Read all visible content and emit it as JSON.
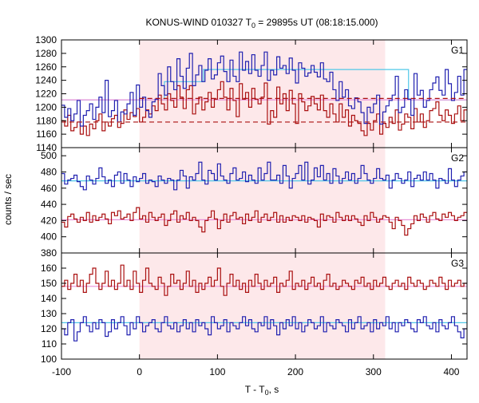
{
  "chart_data": {
    "type": "line",
    "title_main": "KONUS-WIND 010327 T",
    "title_sub": "0",
    "title_rest": " = 29895s UT (08:18:15.000)",
    "xlabel_main": "T - T",
    "xlabel_sub": "0",
    "xlabel_rest": ", s",
    "ylabel": "counts / sec",
    "xlim": [
      -100,
      420
    ],
    "x_ticks": [
      -100,
      0,
      100,
      200,
      300,
      400
    ],
    "highlight_interval": [
      0,
      315
    ],
    "colors": {
      "blue": "#2020b0",
      "red": "#aa1010",
      "cyan": "#50c8e8",
      "pink": "#e890d8",
      "highlight": "#fde8ea"
    },
    "panels": [
      {
        "label": "G1",
        "ylim": [
          1140,
          1300
        ],
        "y_ticks": [
          1140,
          1160,
          1180,
          1200,
          1220,
          1240,
          1260,
          1280,
          1300
        ],
        "bin_width": 4,
        "blue": [
          1203,
          1185,
          1198,
          1180,
          1190,
          1210,
          1172,
          1188,
          1195,
          1205,
          1182,
          1200,
          1215,
          1192,
          1240,
          1186,
          1195,
          1210,
          1178,
          1193,
          1190,
          1205,
          1222,
          1188,
          1233,
          1200,
          1215,
          1195,
          1185,
          1208,
          1212,
          1250,
          1232,
          1218,
          1260,
          1238,
          1226,
          1272,
          1246,
          1228,
          1258,
          1280,
          1232,
          1248,
          1262,
          1238,
          1255,
          1272,
          1242,
          1248,
          1266,
          1276,
          1253,
          1238,
          1270,
          1246,
          1238,
          1282,
          1255,
          1268,
          1250,
          1278,
          1255,
          1246,
          1262,
          1282,
          1240,
          1255,
          1248,
          1275,
          1258,
          1262,
          1250,
          1273,
          1255,
          1236,
          1266,
          1258,
          1246,
          1251,
          1262,
          1252,
          1245,
          1266,
          1242,
          1238,
          1252,
          1226,
          1210,
          1238,
          1215,
          1226,
          1202,
          1198,
          1214,
          1208,
          1192,
          1176,
          1200,
          1192,
          1205,
          1218,
          1175,
          1193,
          1202,
          1210,
          1218,
          1246,
          1192,
          1200,
          1226,
          1212,
          1188,
          1250,
          1218,
          1225,
          1200,
          1210,
          1226,
          1236,
          1245,
          1225,
          1218,
          1256,
          1235,
          1210,
          1222,
          1246,
          1218,
          1256
        ],
        "red": [
          1180,
          1172,
          1188,
          1165,
          1170,
          1178,
          1160,
          1172,
          1158,
          1175,
          1168,
          1180,
          1190,
          1165,
          1178,
          1172,
          1183,
          1188,
          1170,
          1176,
          1196,
          1182,
          1192,
          1186,
          1198,
          1178,
          1185,
          1196,
          1190,
          1202,
          1195,
          1218,
          1205,
          1196,
          1220,
          1210,
          1200,
          1232,
          1215,
          1198,
          1226,
          1232,
          1190,
          1205,
          1215,
          1196,
          1208,
          1222,
          1200,
          1212,
          1226,
          1238,
          1215,
          1196,
          1228,
          1210,
          1186,
          1235,
          1212,
          1222,
          1200,
          1228,
          1212,
          1205,
          1215,
          1236,
          1175,
          1195,
          1185,
          1230,
          1205,
          1220,
          1195,
          1225,
          1205,
          1176,
          1220,
          1208,
          1195,
          1202,
          1216,
          1205,
          1196,
          1218,
          1195,
          1185,
          1205,
          1190,
          1178,
          1205,
          1185,
          1196,
          1172,
          1188,
          1180,
          1176,
          1165,
          1158,
          1176,
          1166,
          1180,
          1190,
          1160,
          1176,
          1170,
          1185,
          1176,
          1196,
          1166,
          1175,
          1190,
          1185,
          1168,
          1198,
          1178,
          1190,
          1170,
          1180,
          1195,
          1198,
          1208,
          1188,
          1180,
          1196,
          1188,
          1176,
          1190,
          1202,
          1180,
          1196
        ],
        "cyan_steps": [
          {
            "x0": -100,
            "x1": 32,
            "y": 1211
          },
          {
            "x0": 32,
            "x1": 82,
            "y": 1238
          },
          {
            "x0": 82,
            "x1": 345,
            "y": 1256
          },
          {
            "x0": 345,
            "x1": 420,
            "y": 1211
          }
        ],
        "pink_level": 1211,
        "red_dashed_mean": 1178,
        "red_dashed_level": 1213
      },
      {
        "label": "G2",
        "ylim": [
          380,
          510
        ],
        "y_ticks": [
          380,
          400,
          420,
          440,
          460,
          480,
          500
        ],
        "bin_width": 4,
        "blue": [
          478,
          465,
          470,
          472,
          476,
          468,
          462,
          458,
          475,
          470,
          465,
          472,
          485,
          474,
          466,
          470,
          462,
          476,
          480,
          466,
          478,
          470,
          462,
          474,
          468,
          472,
          478,
          466,
          470,
          468,
          462,
          475,
          470,
          466,
          472,
          470,
          458,
          470,
          482,
          475,
          460,
          474,
          470,
          478,
          492,
          470,
          465,
          482,
          478,
          470,
          490,
          475,
          470,
          466,
          478,
          485,
          470,
          472,
          480,
          468,
          476,
          470,
          466,
          485,
          470,
          478,
          492,
          470,
          470,
          476,
          466,
          488,
          475,
          460,
          472,
          478,
          488,
          470,
          492,
          465,
          470,
          485,
          474,
          488,
          470,
          478,
          466,
          484,
          475,
          466,
          472,
          480,
          470,
          478,
          466,
          472,
          488,
          478,
          470,
          466,
          472,
          484,
          472,
          470,
          476,
          460,
          470,
          478,
          472,
          466,
          470,
          480,
          462,
          472,
          476,
          470,
          480,
          470,
          478,
          470,
          460,
          472,
          470,
          466,
          484,
          470,
          462,
          470,
          475,
          480
        ],
        "red": [
          418,
          412,
          425,
          428,
          422,
          418,
          424,
          420,
          430,
          418,
          426,
          420,
          424,
          428,
          422,
          416,
          430,
          426,
          432,
          422,
          424,
          428,
          420,
          430,
          436,
          422,
          426,
          418,
          430,
          424,
          420,
          424,
          428,
          414,
          420,
          428,
          432,
          418,
          426,
          422,
          430,
          420,
          424,
          420,
          412,
          406,
          420,
          424,
          432,
          422,
          410,
          420,
          428,
          418,
          426,
          430,
          422,
          424,
          416,
          428,
          420,
          424,
          432,
          418,
          424,
          428,
          420,
          424,
          430,
          418,
          426,
          418,
          424,
          420,
          426,
          424,
          420,
          426,
          418,
          424,
          422,
          420,
          412,
          428,
          420,
          426,
          424,
          418,
          430,
          424,
          420,
          426,
          420,
          426,
          422,
          418,
          414,
          426,
          420,
          430,
          424,
          418,
          422,
          426,
          424,
          418,
          410,
          424,
          420,
          414,
          402,
          410,
          416,
          426,
          420,
          428,
          424,
          418,
          426,
          430,
          422,
          420,
          428,
          424,
          430,
          426,
          420,
          424,
          426,
          430
        ],
        "cyan_level": 469,
        "pink_level": 421
      },
      {
        "label": "G3",
        "ylim": [
          100,
          170
        ],
        "y_ticks": [
          100,
          110,
          120,
          130,
          140,
          150,
          160
        ],
        "bin_width": 4,
        "blue": [
          120,
          116,
          124,
          126,
          112,
          118,
          124,
          128,
          122,
          118,
          124,
          120,
          126,
          124,
          115,
          118,
          126,
          120,
          124,
          128,
          122,
          116,
          124,
          120,
          128,
          124,
          118,
          122,
          124,
          126,
          120,
          118,
          124,
          128,
          122,
          120,
          124,
          118,
          122,
          126,
          120,
          124,
          118,
          126,
          122,
          124,
          120,
          116,
          128,
          124,
          120,
          122,
          126,
          118,
          124,
          122,
          120,
          124,
          128,
          122,
          126,
          120,
          118,
          124,
          122,
          128,
          120,
          126,
          122,
          116,
          124,
          120,
          126,
          122,
          128,
          120,
          124,
          118,
          122,
          126,
          124,
          120,
          122,
          128,
          118,
          124,
          122,
          120,
          126,
          124,
          122,
          118,
          126,
          120,
          124,
          128,
          120,
          122,
          124,
          118,
          126,
          120,
          124,
          122,
          128,
          120,
          124,
          118,
          124,
          122,
          126,
          124,
          120,
          118,
          126,
          124,
          128,
          122,
          120,
          124,
          118,
          126,
          122,
          120,
          124,
          128,
          122,
          118,
          114,
          120
        ],
        "red": [
          148,
          152,
          146,
          150,
          156,
          148,
          152,
          144,
          150,
          156,
          160,
          150,
          146,
          150,
          158,
          148,
          152,
          146,
          150,
          162,
          148,
          152,
          146,
          158,
          150,
          144,
          152,
          160,
          150,
          148,
          146,
          154,
          150,
          142,
          148,
          156,
          150,
          152,
          146,
          150,
          158,
          148,
          152,
          144,
          150,
          146,
          150,
          154,
          148,
          152,
          160,
          148,
          142,
          150,
          156,
          148,
          152,
          146,
          150,
          144,
          152,
          148,
          156,
          150,
          146,
          152,
          148,
          150,
          154,
          144,
          150,
          148,
          152,
          158,
          146,
          150,
          148,
          152,
          146,
          150,
          154,
          148,
          150,
          146,
          152,
          156,
          148,
          150,
          146,
          148,
          152,
          150,
          148,
          146,
          152,
          150,
          154,
          148,
          150,
          146,
          152,
          148,
          150,
          154,
          148,
          146,
          150,
          152,
          148,
          150,
          146,
          154,
          150,
          148,
          152,
          150,
          146,
          148,
          152,
          150,
          148,
          154,
          150,
          146,
          152,
          148,
          150,
          152,
          148,
          150
        ],
        "cyan_level": 124,
        "pink_level": 148
      }
    ]
  }
}
